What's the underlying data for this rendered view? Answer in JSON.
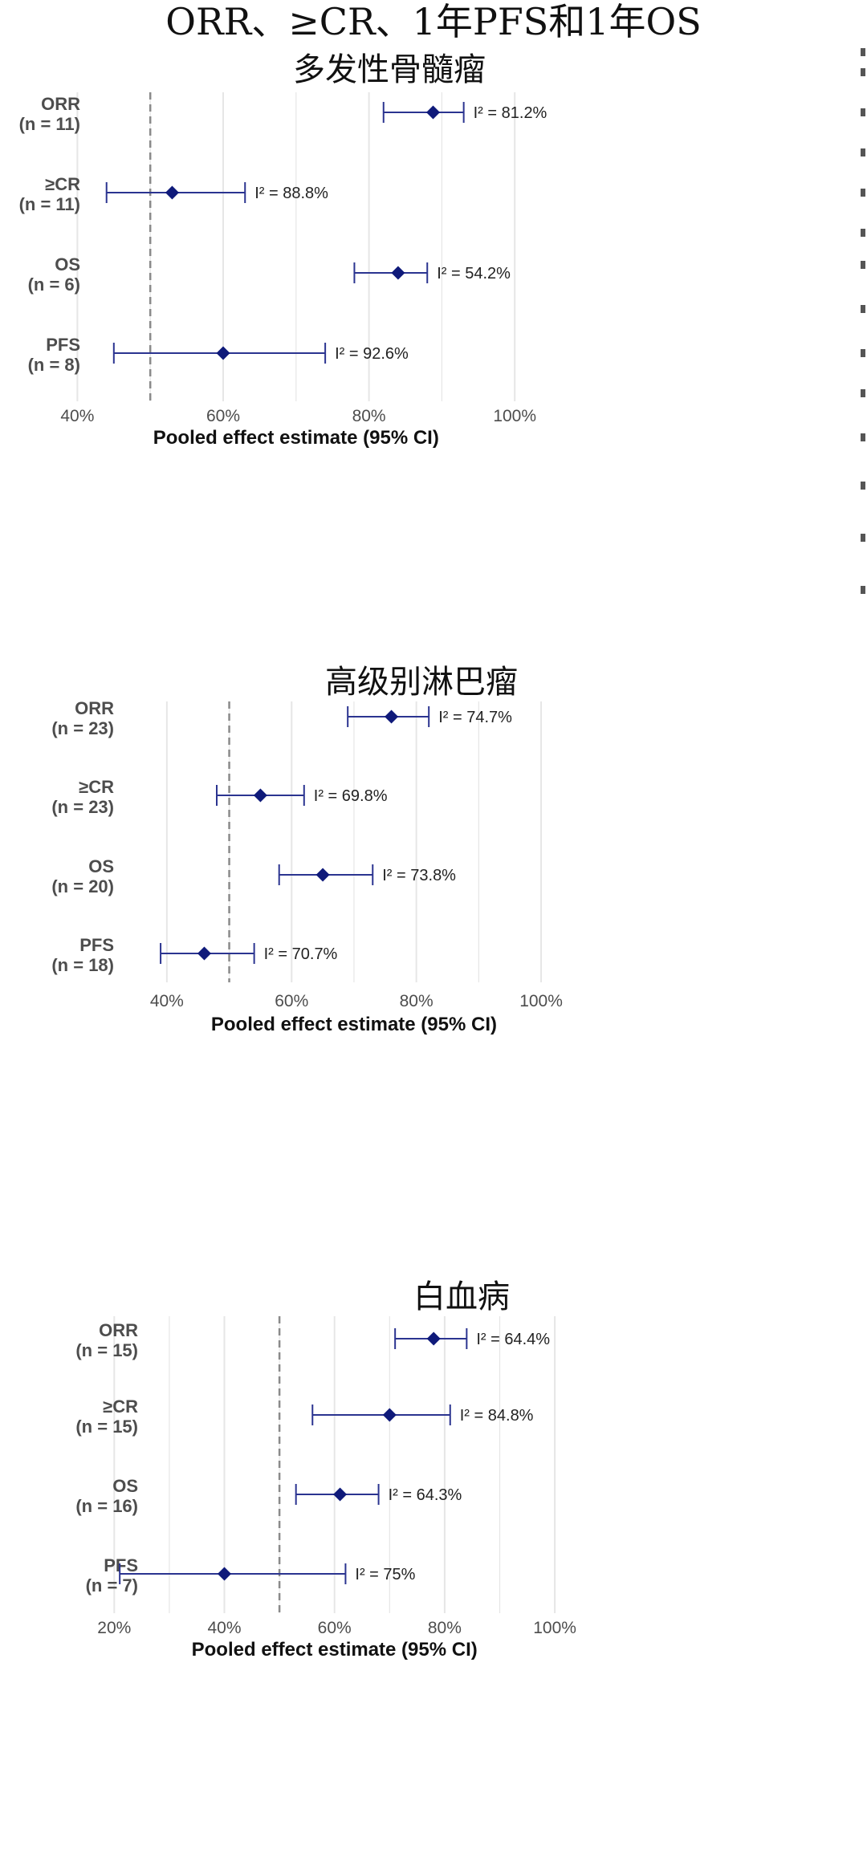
{
  "title": "ORR、≥CR、1年PFS和1年OS",
  "chart_data": [
    {
      "type": "forest",
      "title": "多发性骨髓瘤",
      "xlabel": "Pooled effect estimate (95% CI)",
      "xlim": [
        35,
        107
      ],
      "ticks": [
        40,
        60,
        80,
        100
      ],
      "tick_labels": [
        "40%",
        "60%",
        "80%",
        "100%"
      ],
      "reference_line": 50,
      "rows": [
        {
          "label": "ORR",
          "n": "(n = 11)",
          "estimate": 88.8,
          "lower": 82,
          "upper": 93,
          "i2": "I² = 81.2%"
        },
        {
          "label": "≥CR",
          "n": "(n = 11)",
          "estimate": 53,
          "lower": 44,
          "upper": 63,
          "i2": "I² = 88.8%"
        },
        {
          "label": "OS",
          "n": "(n = 6)",
          "estimate": 84,
          "lower": 78,
          "upper": 88,
          "i2": "I² = 54.2%"
        },
        {
          "label": "PFS",
          "n": "(n = 8)",
          "estimate": 60,
          "lower": 45,
          "upper": 74,
          "i2": "I² = 92.6%"
        }
      ]
    },
    {
      "type": "forest",
      "title": "高级别淋巴瘤",
      "xlabel": "Pooled effect estimate (95% CI)",
      "xlim": [
        35,
        102
      ],
      "ticks": [
        40,
        60,
        80,
        100
      ],
      "tick_labels": [
        "40%",
        "60%",
        "80%",
        "100%"
      ],
      "reference_line": 50,
      "rows": [
        {
          "label": "ORR",
          "n": "(n = 23)",
          "estimate": 76,
          "lower": 69,
          "upper": 82,
          "i2": "I² = 74.7%"
        },
        {
          "label": "≥CR",
          "n": "(n = 23)",
          "estimate": 55,
          "lower": 48,
          "upper": 62,
          "i2": "I² = 69.8%"
        },
        {
          "label": "OS",
          "n": "(n = 20)",
          "estimate": 65,
          "lower": 58,
          "upper": 73,
          "i2": "I² = 73.8%"
        },
        {
          "label": "PFS",
          "n": "(n = 18)",
          "estimate": 46,
          "lower": 39,
          "upper": 54,
          "i2": "I² = 70.7%"
        }
      ]
    },
    {
      "type": "forest",
      "title": "白血病",
      "xlabel": "Pooled effect estimate (95% CI)",
      "xlim": [
        15,
        104
      ],
      "ticks": [
        20,
        40,
        60,
        80,
        100
      ],
      "tick_labels": [
        "20%",
        "40%",
        "60%",
        "80%",
        "100%"
      ],
      "reference_line": 50,
      "rows": [
        {
          "label": "ORR",
          "n": "(n = 15)",
          "estimate": 78,
          "lower": 71,
          "upper": 84,
          "i2": "I² = 64.4%"
        },
        {
          "label": "≥CR",
          "n": "(n = 15)",
          "estimate": 70,
          "lower": 56,
          "upper": 81,
          "i2": "I² = 84.8%"
        },
        {
          "label": "OS",
          "n": "(n = 16)",
          "estimate": 61,
          "lower": 53,
          "upper": 68,
          "i2": "I² = 64.3%"
        },
        {
          "label": "PFS",
          "n": "(n = 7)",
          "estimate": 40,
          "lower": 21,
          "upper": 62,
          "i2": "I² = 75%"
        }
      ]
    }
  ],
  "colors": {
    "point": "#0f1a7a",
    "ci_line": "#2b3490",
    "grid": "#e6e6e6",
    "reference": "#8a8a8a",
    "row_label": "#4d4d4d",
    "tick_label": "#4d4d4d",
    "axis_title": "#111111",
    "annotation": "#222222"
  }
}
